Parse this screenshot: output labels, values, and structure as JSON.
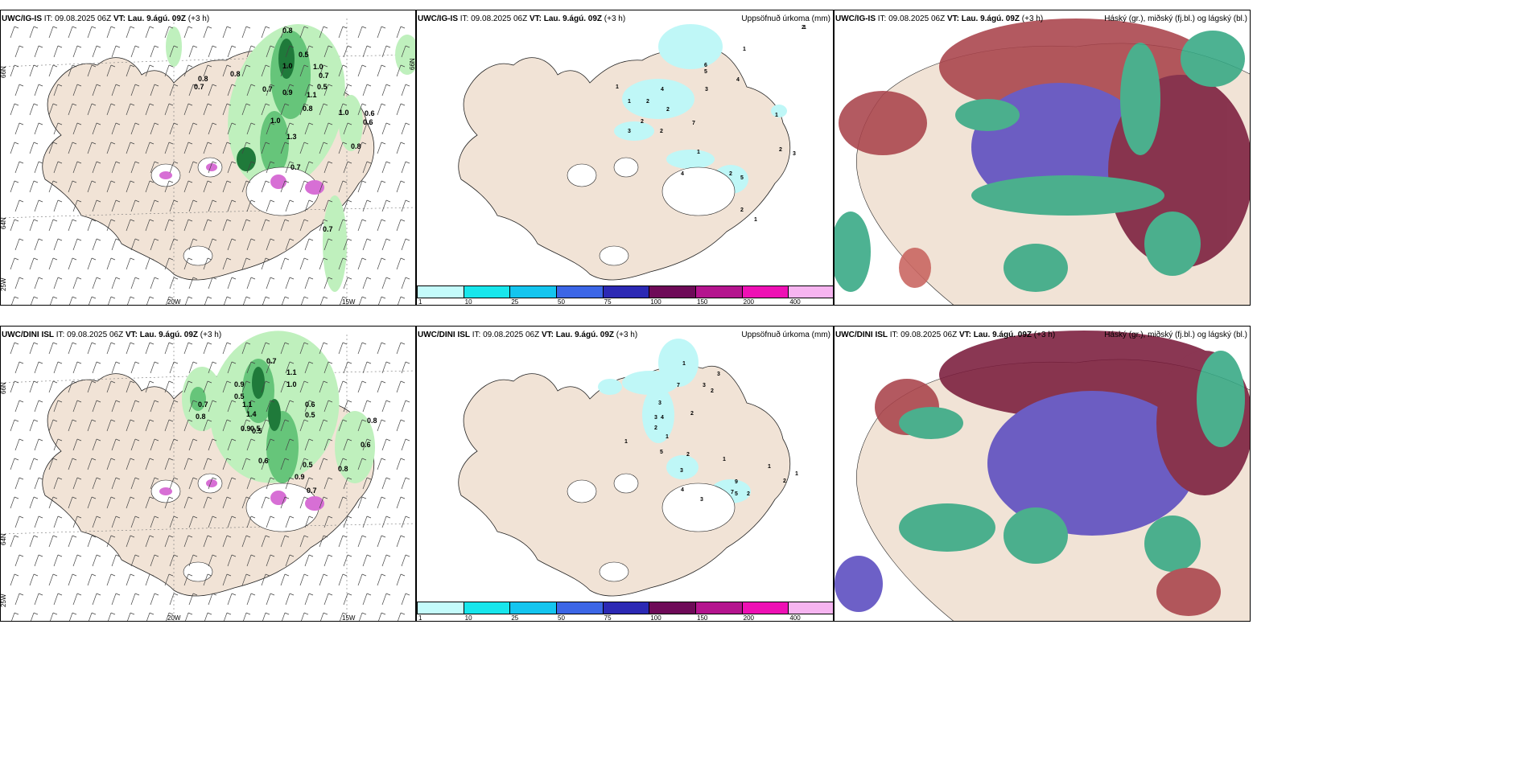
{
  "colors": {
    "land": "#f1e3d6",
    "sea": "#ffffff",
    "precip_light": "#bff0bd",
    "precip_mid": "#66c57a",
    "precip_dark": "#1f7a3a",
    "snow": "#d76fd5",
    "accum_low": "#bff7f7",
    "cloud_high": "#a9434b",
    "cloud_mid": "#5a4bc0",
    "cloud_low": "#35a884",
    "cloud_dark": "#7a1c3c"
  },
  "rows": [
    {
      "model": "UWC/IG-IS",
      "it_label": "IT:",
      "it_value": "09.08.2025 06Z",
      "vt_label": "VT:",
      "vt_value": "Lau. 9.ágú. 09Z",
      "lead": "(+3 h)",
      "accum_title": "Uppsöfnuð úrkoma (mm)",
      "cloud_title": "Háský (gr.), miðský (fj.bl.) og lágský (bl.)"
    },
    {
      "model": "UWC/DINI ISL",
      "it_label": "IT:",
      "it_value": "09.08.2025 06Z",
      "vt_label": "VT:",
      "vt_value": "Lau. 9.ágú. 09Z",
      "lead": "(+3 h)",
      "accum_title": "Uppsöfnuð úrkoma (mm)",
      "cloud_title": "Háský (gr.), miðský (fj.bl.) og lágský (bl.)"
    }
  ],
  "graticule": {
    "lat_66": "66N",
    "lat_64": "64N",
    "lon_25": "25W",
    "lon_20": "20W",
    "lon_15": "15W"
  },
  "colorbar": {
    "ticks": [
      "1",
      "10",
      "25",
      "50",
      "75",
      "100",
      "150",
      "200",
      "400"
    ],
    "colors": [
      "#c4fbfb",
      "#18e6ec",
      "#14c5ef",
      "#3c66e6",
      "#2c29b4",
      "#6e0a58",
      "#b4148e",
      "#ee10b4",
      "#f6b4f0"
    ]
  },
  "precip_labels_top": [
    "0.8",
    "0.7",
    "0.8",
    "1.0",
    "0.8",
    "0.5",
    "1.0",
    "0.7",
    "0.9",
    "1.1",
    "0.7",
    "0.5",
    "0.8",
    "1.0",
    "0.6",
    "0.6",
    "0.8",
    "1.3",
    "0.7",
    "1.0",
    "0.7"
  ],
  "precip_labels_bottom": [
    "0.7",
    "1.1",
    "1.0",
    "0.9",
    "0.5",
    "0.7",
    "0.8",
    "1.1",
    "1.4",
    "0.5",
    "0.6",
    "0.5",
    "0.8",
    "0.6",
    "0.5",
    "0.9",
    "0.7",
    "0.8",
    "0.6",
    "0.5",
    "0.9"
  ],
  "accum_labels_top": [
    "1",
    "2",
    "1",
    "6",
    "5",
    "3",
    "4",
    "1",
    "1",
    "4",
    "2",
    "2",
    "3",
    "2",
    "7",
    "2",
    "1",
    "4",
    "2",
    "5",
    "2",
    "1",
    "2",
    "3",
    "1"
  ],
  "accum_labels_bottom": [
    "1",
    "3",
    "7",
    "3",
    "2",
    "3",
    "2",
    "1",
    "4",
    "3",
    "2",
    "1",
    "5",
    "3",
    "2",
    "1",
    "4",
    "3",
    "9",
    "5",
    "1",
    "7",
    "2",
    "1",
    "2"
  ]
}
